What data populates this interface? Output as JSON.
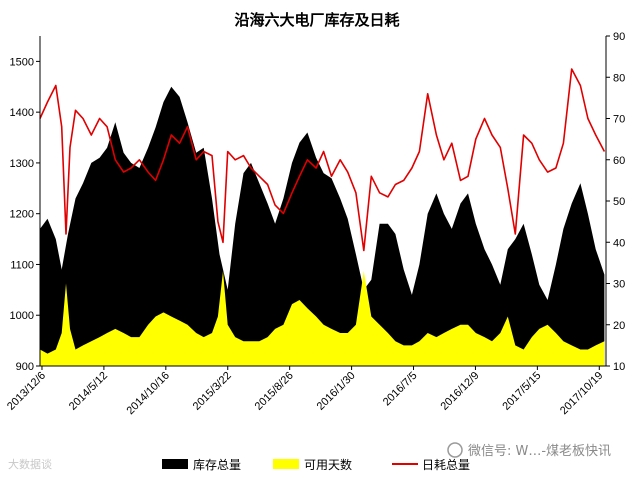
{
  "chart_data": {
    "type": "area",
    "title": "沿海六大电厂库存及日耗",
    "x_ticks": [
      "2013/12/6",
      "2014/5/12",
      "2014/10/16",
      "2015/3/22",
      "2015/8/26",
      "2016/1/30",
      "2016/7/5",
      "2016/12/9",
      "2017/5/15",
      "2017/10/19"
    ],
    "x_range": [
      "2013/12/1",
      "2017/11/5"
    ],
    "y_left": {
      "ticks": [
        900,
        1000,
        1100,
        1200,
        1300,
        1400,
        1500
      ],
      "ylim": [
        900,
        1550
      ]
    },
    "y_right": {
      "ticks": [
        10,
        20,
        30,
        40,
        50,
        60,
        70,
        80,
        90
      ],
      "ylim": [
        10,
        90
      ]
    },
    "legend": {
      "placement": "bottom"
    },
    "series": [
      {
        "name": "库存总量",
        "axis": "left",
        "kind": "area",
        "color": "#000000",
        "x": [
          "2013/12/1",
          "2013/12/20",
          "2014/1/10",
          "2014/1/25",
          "2014/2/10",
          "2014/3/1",
          "2014/3/20",
          "2014/4/10",
          "2014/5/1",
          "2014/5/20",
          "2014/6/10",
          "2014/7/1",
          "2014/7/20",
          "2014/8/10",
          "2014/9/1",
          "2014/9/20",
          "2014/10/10",
          "2014/10/30",
          "2014/11/20",
          "2014/12/10",
          "2015/1/1",
          "2015/1/20",
          "2015/2/10",
          "2015/3/1",
          "2015/3/22",
          "2015/4/10",
          "2015/5/1",
          "2015/5/20",
          "2015/6/10",
          "2015/7/1",
          "2015/7/20",
          "2015/8/10",
          "2015/9/1",
          "2015/9/20",
          "2015/10/10",
          "2015/11/1",
          "2015/11/20",
          "2015/12/10",
          "2016/1/1",
          "2016/1/20",
          "2016/2/10",
          "2016/3/1",
          "2016/3/20",
          "2016/4/10",
          "2016/5/1",
          "2016/5/20",
          "2016/6/10",
          "2016/7/1",
          "2016/7/20",
          "2016/8/10",
          "2016/9/1",
          "2016/9/20",
          "2016/10/10",
          "2016/11/1",
          "2016/11/20",
          "2016/12/10",
          "2017/1/1",
          "2017/1/20",
          "2017/2/10",
          "2017/3/1",
          "2017/3/20",
          "2017/4/10",
          "2017/5/1",
          "2017/5/20",
          "2017/6/10",
          "2017/7/1",
          "2017/7/20",
          "2017/8/10",
          "2017/9/1",
          "2017/9/20",
          "2017/10/10",
          "2017/11/1"
        ],
        "values": [
          1170,
          1190,
          1150,
          1090,
          1160,
          1230,
          1260,
          1300,
          1310,
          1330,
          1380,
          1320,
          1300,
          1290,
          1330,
          1370,
          1420,
          1450,
          1430,
          1380,
          1320,
          1330,
          1230,
          1120,
          1050,
          1180,
          1280,
          1300,
          1260,
          1220,
          1180,
          1230,
          1300,
          1340,
          1360,
          1310,
          1280,
          1270,
          1230,
          1190,
          1120,
          1050,
          1070,
          1180,
          1180,
          1160,
          1090,
          1040,
          1100,
          1200,
          1240,
          1200,
          1170,
          1220,
          1240,
          1180,
          1130,
          1100,
          1060,
          1130,
          1150,
          1180,
          1120,
          1060,
          1030,
          1100,
          1170,
          1220,
          1260,
          1200,
          1130,
          1080
        ]
      },
      {
        "name": "可用天数",
        "axis": "right",
        "kind": "area",
        "color": "#ffff00",
        "x": [
          "2013/12/1",
          "2013/12/20",
          "2014/1/10",
          "2014/1/25",
          "2014/2/5",
          "2014/2/15",
          "2014/3/1",
          "2014/3/20",
          "2014/4/10",
          "2014/5/1",
          "2014/5/20",
          "2014/6/10",
          "2014/7/1",
          "2014/7/20",
          "2014/8/10",
          "2014/9/1",
          "2014/9/20",
          "2014/10/10",
          "2014/10/30",
          "2014/11/20",
          "2014/12/10",
          "2015/1/1",
          "2015/1/20",
          "2015/2/10",
          "2015/2/25",
          "2015/3/10",
          "2015/3/22",
          "2015/4/10",
          "2015/5/1",
          "2015/5/20",
          "2015/6/10",
          "2015/7/1",
          "2015/7/20",
          "2015/8/10",
          "2015/9/1",
          "2015/9/20",
          "2015/10/10",
          "2015/11/1",
          "2015/11/20",
          "2015/12/10",
          "2016/1/1",
          "2016/1/20",
          "2016/2/10",
          "2016/3/1",
          "2016/3/20",
          "2016/4/10",
          "2016/5/1",
          "2016/5/20",
          "2016/6/10",
          "2016/7/1",
          "2016/7/20",
          "2016/8/10",
          "2016/9/1",
          "2016/9/20",
          "2016/10/10",
          "2016/11/1",
          "2016/11/20",
          "2016/12/10",
          "2017/1/1",
          "2017/1/20",
          "2017/2/10",
          "2017/3/1",
          "2017/3/20",
          "2017/4/10",
          "2017/5/1",
          "2017/5/20",
          "2017/6/10",
          "2017/7/1",
          "2017/7/20",
          "2017/8/10",
          "2017/9/1",
          "2017/9/20",
          "2017/10/10",
          "2017/11/1"
        ],
        "values": [
          14,
          13,
          14,
          18,
          30,
          19,
          14,
          15,
          16,
          17,
          18,
          19,
          18,
          17,
          17,
          20,
          22,
          23,
          22,
          21,
          20,
          18,
          17,
          18,
          22,
          33,
          20,
          17,
          16,
          16,
          16,
          17,
          19,
          20,
          25,
          26,
          24,
          22,
          20,
          19,
          18,
          18,
          20,
          33,
          22,
          20,
          18,
          16,
          15,
          15,
          16,
          18,
          17,
          18,
          19,
          20,
          20,
          18,
          17,
          16,
          18,
          22,
          15,
          14,
          17,
          19,
          20,
          18,
          16,
          15,
          14,
          14,
          15,
          16
        ]
      },
      {
        "name": "日耗总量",
        "axis": "right",
        "kind": "line",
        "color": "#e00000",
        "x": [
          "2013/12/1",
          "2013/12/20",
          "2014/1/10",
          "2014/1/25",
          "2014/2/5",
          "2014/2/15",
          "2014/3/1",
          "2014/3/20",
          "2014/4/10",
          "2014/5/1",
          "2014/5/20",
          "2014/6/10",
          "2014/7/1",
          "2014/7/20",
          "2014/8/10",
          "2014/9/1",
          "2014/9/20",
          "2014/10/10",
          "2014/10/30",
          "2014/11/20",
          "2014/12/10",
          "2015/1/1",
          "2015/1/20",
          "2015/2/10",
          "2015/2/25",
          "2015/3/10",
          "2015/3/22",
          "2015/4/10",
          "2015/5/1",
          "2015/5/20",
          "2015/6/10",
          "2015/7/1",
          "2015/7/20",
          "2015/8/10",
          "2015/9/1",
          "2015/9/20",
          "2015/10/10",
          "2015/11/1",
          "2015/11/20",
          "2015/12/10",
          "2016/1/1",
          "2016/1/20",
          "2016/2/10",
          "2016/3/1",
          "2016/3/20",
          "2016/4/10",
          "2016/5/1",
          "2016/5/20",
          "2016/6/10",
          "2016/7/1",
          "2016/7/20",
          "2016/8/10",
          "2016/9/1",
          "2016/9/20",
          "2016/10/10",
          "2016/11/1",
          "2016/11/20",
          "2016/12/10",
          "2017/1/1",
          "2017/1/20",
          "2017/2/10",
          "2017/3/1",
          "2017/3/20",
          "2017/4/10",
          "2017/5/1",
          "2017/5/20",
          "2017/6/10",
          "2017/7/1",
          "2017/7/20",
          "2017/8/10",
          "2017/9/1",
          "2017/9/20",
          "2017/10/10",
          "2017/11/1"
        ],
        "values": [
          70,
          74,
          78,
          68,
          42,
          63,
          72,
          70,
          66,
          70,
          68,
          60,
          57,
          58,
          60,
          57,
          55,
          60,
          66,
          64,
          68,
          60,
          62,
          61,
          45,
          40,
          62,
          60,
          61,
          58,
          56,
          54,
          49,
          47,
          52,
          56,
          60,
          58,
          62,
          56,
          60,
          57,
          52,
          38,
          56,
          52,
          51,
          54,
          55,
          58,
          62,
          76,
          66,
          60,
          64,
          55,
          56,
          65,
          70,
          66,
          63,
          53,
          42,
          66,
          64,
          60,
          57,
          58,
          64,
          82,
          78,
          70,
          66,
          62
        ]
      }
    ]
  },
  "watermark": {
    "wechat_text": "微信号: W…-煤老板快讯",
    "left_text": "大数据谈"
  }
}
